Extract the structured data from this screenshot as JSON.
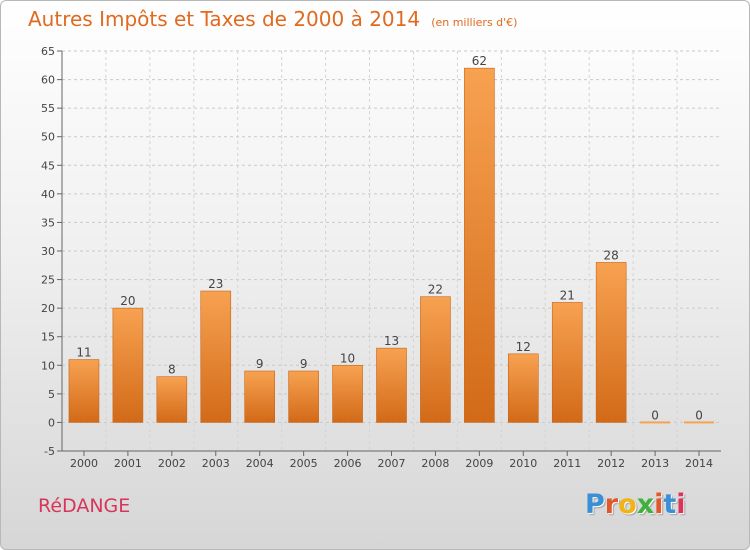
{
  "header": {
    "title": "Autres Impôts et Taxes de 2000 à 2014",
    "unit": "(en milliers d'€)"
  },
  "footer": {
    "place": "RéDANGE",
    "brand_letters": [
      "P",
      "r",
      "o",
      "x",
      "i",
      "t",
      "i"
    ]
  },
  "colors": {
    "title": "#e06a20",
    "place": "#d8355a",
    "bar_top": "#f7a251",
    "bar_bottom": "#d26a18",
    "brand_letters": [
      "#3a8fd6",
      "#e0582b",
      "#f0b419",
      "#3fb03c",
      "#e0582b",
      "#3a8fd6",
      "#d8355a"
    ]
  },
  "chart_data": {
    "type": "bar",
    "categories": [
      "2000",
      "2001",
      "2002",
      "2003",
      "2004",
      "2005",
      "2006",
      "2007",
      "2008",
      "2009",
      "2010",
      "2011",
      "2012",
      "2013",
      "2014"
    ],
    "values": [
      11,
      20,
      8,
      23,
      9,
      9,
      10,
      13,
      22,
      62,
      12,
      21,
      28,
      0,
      0
    ],
    "data_labels": [
      "11",
      "20",
      "8",
      "23",
      "9",
      "9",
      "10",
      "13",
      "22",
      "62",
      "12",
      "21",
      "28",
      "0",
      "0"
    ],
    "ylim": [
      -5,
      65
    ],
    "yticks": [
      -5,
      0,
      5,
      10,
      15,
      20,
      25,
      30,
      35,
      40,
      45,
      50,
      55,
      60,
      65
    ],
    "grid": true,
    "title": "Autres Impôts et Taxes de 2000 à 2014",
    "xlabel": "",
    "ylabel": ""
  }
}
